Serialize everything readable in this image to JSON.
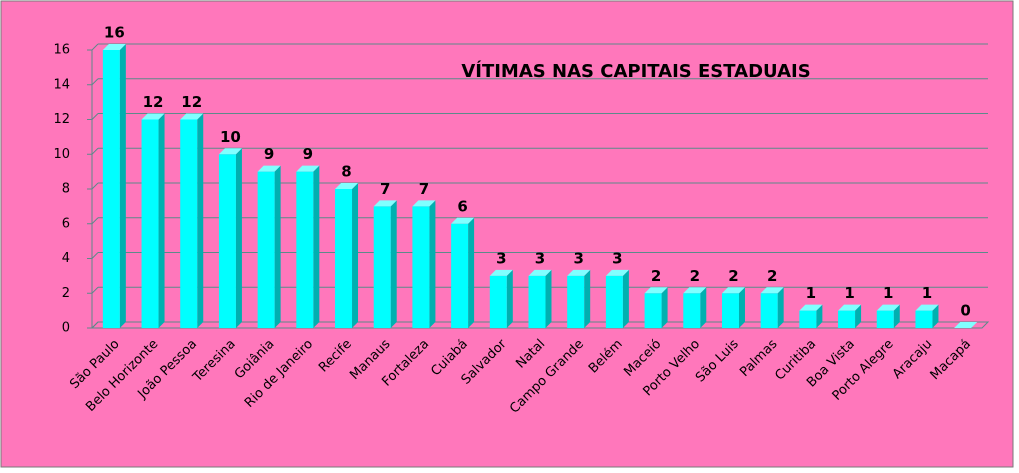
{
  "chart_data": {
    "type": "bar",
    "title": "VÍTIMAS NAS CAPITAIS ESTADUAIS",
    "categories": [
      "São Paulo",
      "Belo Horizonte",
      "João Pessoa",
      "Teresina",
      "Goiânia",
      "Rio de Janeiro",
      "Recife",
      "Manaus",
      "Fortaleza",
      "Cuiabá",
      "Salvador",
      "Natal",
      "Campo Grande",
      "Belém",
      "Maceió",
      "Porto Velho",
      "São Luis",
      "Palmas",
      "Curitiba",
      "Boa Vista",
      "Porto Alegre",
      "Aracaju",
      "Macapá"
    ],
    "values": [
      16,
      12,
      12,
      10,
      9,
      9,
      8,
      7,
      7,
      6,
      3,
      3,
      3,
      3,
      2,
      2,
      2,
      2,
      1,
      1,
      1,
      1,
      0
    ],
    "color": "#00ffff",
    "ylim": [
      0,
      16
    ],
    "yticks": [
      0,
      2,
      4,
      6,
      8,
      10,
      12,
      14,
      16
    ],
    "grid": true
  }
}
